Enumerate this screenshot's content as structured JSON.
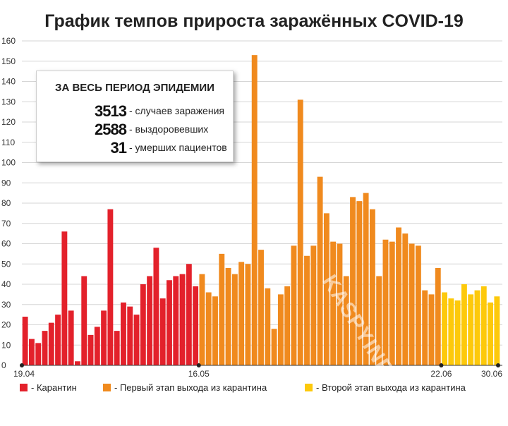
{
  "chart_data": {
    "type": "bar",
    "title": "График темпов прироста заражённых COVID-19",
    "ylim": [
      0,
      160
    ],
    "yticks": [
      0,
      10,
      20,
      30,
      40,
      50,
      60,
      70,
      80,
      90,
      100,
      110,
      120,
      130,
      140,
      150,
      160
    ],
    "x_tick_labels": [
      "19.04",
      "16.05",
      "22.06",
      "30.06"
    ],
    "series": [
      {
        "name": "Карантин",
        "color": "#e3212b",
        "values": [
          24,
          13,
          11,
          17,
          21,
          25,
          66,
          27,
          2,
          44,
          15,
          19,
          27,
          77,
          17,
          31,
          29,
          25,
          40,
          44,
          58,
          33,
          42,
          44,
          45,
          50,
          39
        ]
      },
      {
        "name": "Первый этап выхода из карантина",
        "color": "#f08a1e",
        "values": [
          45,
          36,
          34,
          55,
          48,
          45,
          51,
          50,
          153,
          57,
          38,
          18,
          35,
          39,
          59,
          131,
          54,
          59,
          93,
          75,
          61,
          60,
          44,
          83,
          81,
          85,
          77,
          44,
          62,
          61,
          68,
          65,
          60,
          59,
          37,
          35,
          48
        ]
      },
      {
        "name": "Второй этап выхода из карантина",
        "color": "#fdc90b",
        "values": [
          36,
          33,
          32,
          40,
          35,
          37,
          39,
          31,
          34
        ]
      }
    ],
    "grid": true,
    "legend": "bottom"
  },
  "summary": {
    "heading": "ЗА ВЕСЬ ПЕРИОД ЭПИДЕМИИ",
    "stats": [
      {
        "value": "3513",
        "label": "- случаев заражения"
      },
      {
        "value": "2588",
        "label": "- выздоровевших"
      },
      {
        "value": "31",
        "label": "- умерших пациентов"
      }
    ]
  },
  "legend": [
    {
      "label": "- Карантин",
      "color": "#e3212b"
    },
    {
      "label": "- Первый этап выхода из карантина",
      "color": "#f08a1e"
    },
    {
      "label": "- Второй этап выхода из карантина",
      "color": "#fdc90b"
    }
  ],
  "watermark": "KASPYINFO.RU"
}
